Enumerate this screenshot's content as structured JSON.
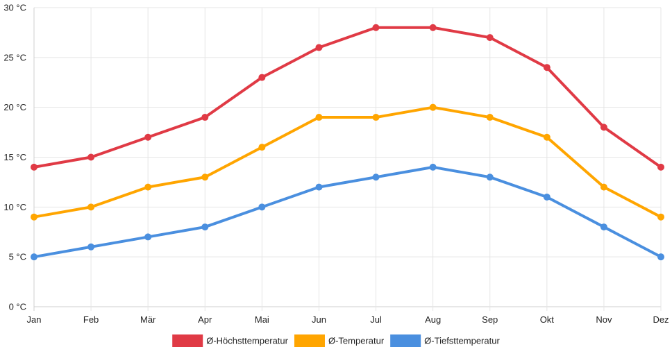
{
  "chart_data": {
    "type": "line",
    "title": "",
    "xlabel": "",
    "ylabel": "",
    "categories": [
      "Jan",
      "Feb",
      "Mär",
      "Apr",
      "Mai",
      "Jun",
      "Jul",
      "Aug",
      "Sep",
      "Okt",
      "Nov",
      "Dez"
    ],
    "ylim": [
      0,
      30
    ],
    "yticks": [
      0,
      5,
      10,
      15,
      20,
      25,
      30
    ],
    "ytick_labels": [
      "0 °C",
      "5 °C",
      "10 °C",
      "15 °C",
      "20 °C",
      "25 °C",
      "30 °C"
    ],
    "grid": true,
    "legend_position": "bottom-center",
    "series": [
      {
        "name": "Ø-Höchsttemperatur",
        "color": "#e03a45",
        "values": [
          14,
          15,
          17,
          19,
          23,
          26,
          28,
          28,
          27,
          24,
          18,
          14
        ]
      },
      {
        "name": "Ø-Temperatur",
        "color": "#ffa500",
        "values": [
          9,
          10,
          12,
          13,
          16,
          19,
          19,
          20,
          19,
          17,
          12,
          9
        ]
      },
      {
        "name": "Ø-Tiefsttemperatur",
        "color": "#4a8fdf",
        "values": [
          5,
          6,
          7,
          8,
          10,
          12,
          13,
          14,
          13,
          11,
          8,
          5
        ]
      }
    ]
  }
}
